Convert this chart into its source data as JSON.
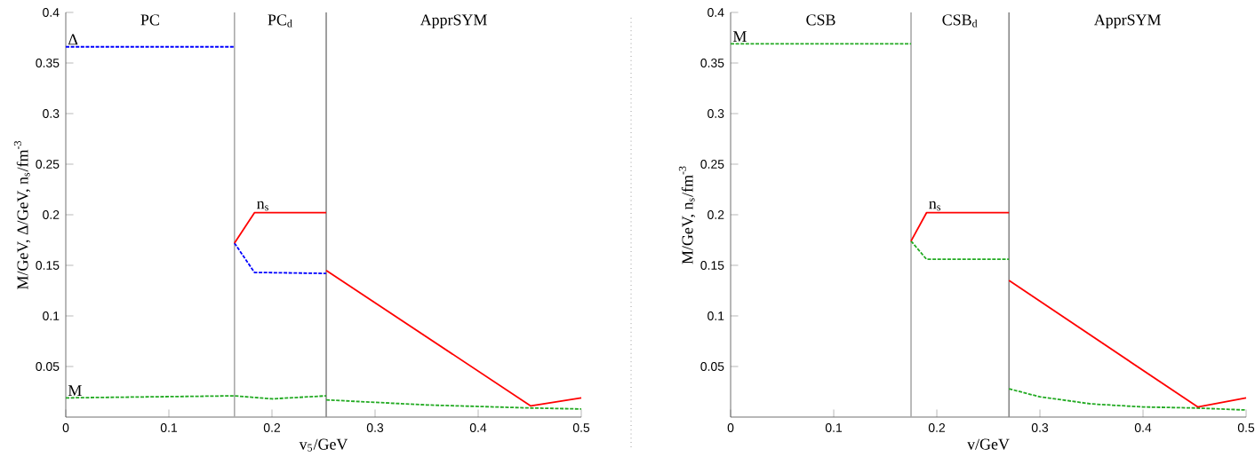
{
  "chart_data": [
    {
      "type": "line",
      "xlabel": "v$_{5}$/GeV",
      "ylabel": "M/GeV, Δ/GeV, n$_{s}$/fm$^{-3}$",
      "xlim": [
        0,
        0.5
      ],
      "ylim": [
        0,
        0.4
      ],
      "xticks": [
        0,
        0.1,
        0.2,
        0.3,
        0.4,
        0.5
      ],
      "yticks": [
        0.05,
        0.1,
        0.15,
        0.2,
        0.25,
        0.3,
        0.35,
        0.4
      ],
      "line_style": "solid",
      "marker": "none",
      "grid": false,
      "legend": false,
      "series": [
        {
          "name": "Δ",
          "color": "#0000ff",
          "line_style": "dashed",
          "x": [
            0,
            0.1636
          ],
          "values": [
            0.366,
            0.366
          ]
        },
        {
          "color": "#0000ff",
          "line_style": "dashed",
          "x": [
            0.1636,
            0.183,
            0.2526
          ],
          "values": [
            0.172,
            0.143,
            0.142
          ]
        },
        {
          "name": "n$_{s}$",
          "color": "#ff0000",
          "x": [
            0.1636,
            0.183,
            0.2526
          ],
          "values": [
            0.172,
            0.202,
            0.202
          ]
        },
        {
          "color": "#ff0000",
          "x": [
            0.2526,
            0.451,
            0.5
          ],
          "values": [
            0.145,
            0.011,
            0.019
          ]
        },
        {
          "name": "M",
          "color": "#22aa22",
          "line_style": "dashed",
          "x": [
            0,
            0.1636,
            0.2,
            0.2526
          ],
          "values": [
            0.019,
            0.021,
            0.018,
            0.021
          ]
        },
        {
          "color": "#22aa22",
          "line_style": "dashed",
          "x": [
            0.2526,
            0.35,
            0.45,
            0.5
          ],
          "values": [
            0.017,
            0.012,
            0.009,
            0.008
          ]
        }
      ],
      "ref_lines": [
        {
          "axis": "x",
          "value": 0.1636,
          "color": "#aaaaaa"
        },
        {
          "axis": "x",
          "value": 0.2526,
          "color": "#888888"
        }
      ],
      "annotations": [
        "PC",
        "PC$_{d}$",
        "ApprSYM"
      ]
    },
    {
      "type": "line",
      "xlabel": "v/GeV",
      "ylabel": "M/GeV,  n$_{s}$/fm$^{-3}$",
      "xlim": [
        0,
        0.5
      ],
      "ylim": [
        0,
        0.4
      ],
      "xticks": [
        0,
        0.1,
        0.2,
        0.3,
        0.4,
        0.5
      ],
      "yticks": [
        0.05,
        0.1,
        0.15,
        0.2,
        0.25,
        0.3,
        0.35,
        0.4
      ],
      "line_style": "solid",
      "marker": "none",
      "grid": false,
      "legend": false,
      "series": [
        {
          "name": "M",
          "color": "#22aa22",
          "line_style": "dashed",
          "x": [
            0,
            0.175
          ],
          "values": [
            0.369,
            0.369
          ]
        },
        {
          "color": "#22aa22",
          "line_style": "dashed",
          "x": [
            0.175,
            0.19,
            0.27
          ],
          "values": [
            0.174,
            0.156,
            0.156
          ]
        },
        {
          "color": "#22aa22",
          "line_style": "dashed",
          "x": [
            0.27,
            0.3,
            0.35,
            0.4,
            0.45,
            0.5
          ],
          "values": [
            0.028,
            0.02,
            0.013,
            0.01,
            0.009,
            0.007
          ]
        },
        {
          "name": "n$_{s}$",
          "color": "#ff0000",
          "x": [
            0.175,
            0.19,
            0.27
          ],
          "values": [
            0.174,
            0.202,
            0.202
          ]
        },
        {
          "color": "#ff0000",
          "x": [
            0.27,
            0.453,
            0.5
          ],
          "values": [
            0.135,
            0.01,
            0.019
          ]
        }
      ],
      "ref_lines": [
        {
          "axis": "x",
          "value": 0.175,
          "color": "#aaaaaa"
        },
        {
          "axis": "x",
          "value": 0.27,
          "color": "#888888"
        }
      ],
      "annotations": [
        "CSB",
        "CSB$_{d}$",
        "ApprSYM"
      ]
    }
  ]
}
